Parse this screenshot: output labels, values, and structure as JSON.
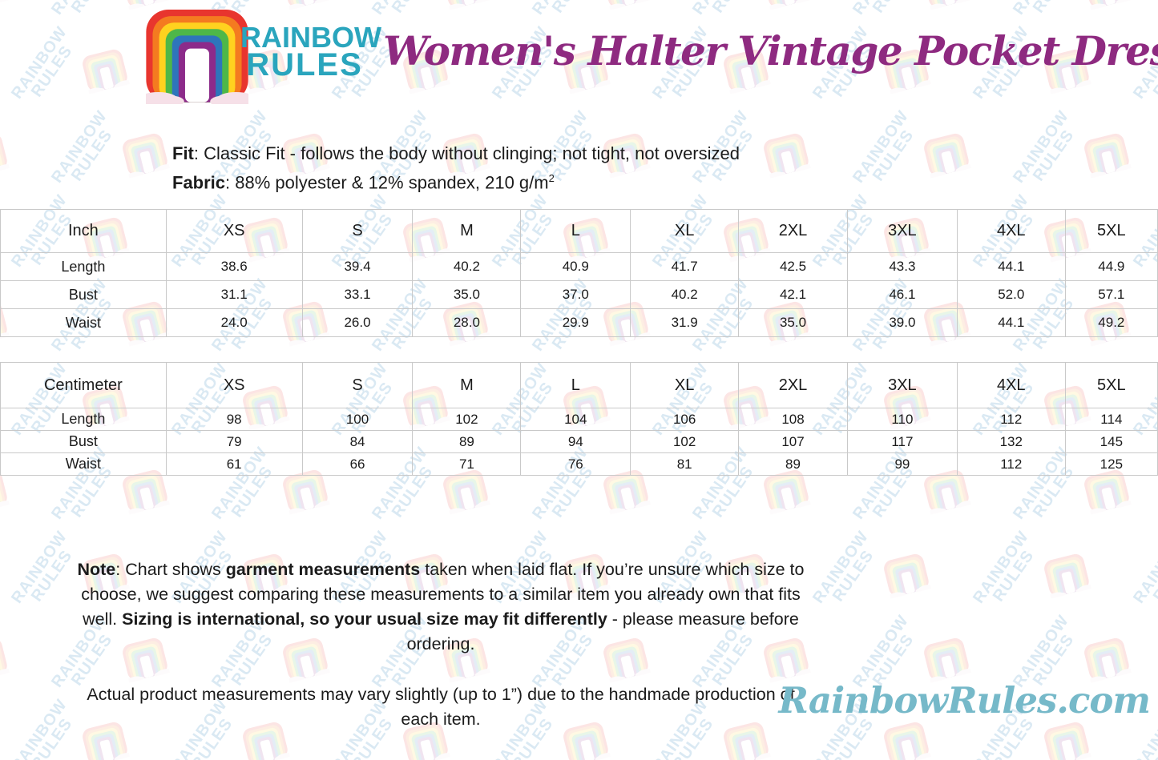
{
  "brand": {
    "line1": "RAINBOW",
    "line2": "RULES"
  },
  "header": {
    "title": "Women's Halter Vintage Pocket Dress"
  },
  "product_info": {
    "fit": [
      {
        "text": "Fit",
        "bold": true
      },
      {
        "text": ": Classic Fit - follows the body without clinging; not tight, not oversized",
        "bold": false
      }
    ],
    "fabric": [
      {
        "text": "Fabric",
        "bold": true
      },
      {
        "text": ": 88% polyester & 12% spandex, 210 g/m",
        "bold": false
      },
      {
        "text": "2",
        "bold": false,
        "sup": true
      }
    ]
  },
  "size_tables": [
    {
      "unit_label": "Inch",
      "columns": [
        "XS",
        "S",
        "M",
        "L",
        "XL",
        "2XL",
        "3XL",
        "4XL",
        "5XL"
      ],
      "rows": [
        {
          "label": "Length",
          "values": [
            "38.6",
            "39.4",
            "40.2",
            "40.9",
            "41.7",
            "42.5",
            "43.3",
            "44.1",
            "44.9"
          ]
        },
        {
          "label": "Bust",
          "values": [
            "31.1",
            "33.1",
            "35.0",
            "37.0",
            "40.2",
            "42.1",
            "46.1",
            "52.0",
            "57.1"
          ]
        },
        {
          "label": "Waist",
          "values": [
            "24.0",
            "26.0",
            "28.0",
            "29.9",
            "31.9",
            "35.0",
            "39.0",
            "44.1",
            "49.2"
          ]
        }
      ]
    },
    {
      "unit_label": "Centimeter",
      "columns": [
        "XS",
        "S",
        "M",
        "L",
        "XL",
        "2XL",
        "3XL",
        "4XL",
        "5XL"
      ],
      "rows": [
        {
          "label": "Length",
          "values": [
            "98",
            "100",
            "102",
            "104",
            "106",
            "108",
            "110",
            "112",
            "114"
          ]
        },
        {
          "label": "Bust",
          "values": [
            "79",
            "84",
            "89",
            "94",
            "102",
            "107",
            "117",
            "132",
            "145"
          ]
        },
        {
          "label": "Waist",
          "values": [
            "61",
            "66",
            "71",
            "76",
            "81",
            "89",
            "99",
            "112",
            "125"
          ]
        }
      ]
    }
  ],
  "notes": {
    "note": [
      {
        "text": "Note",
        "bold": true
      },
      {
        "text": ": Chart shows ",
        "bold": false
      },
      {
        "text": "garment measurements",
        "bold": true
      },
      {
        "text": " taken when laid flat. If you’re unsure which size to choose, we suggest comparing these measurements to a similar item you already own that fits well. ",
        "bold": false
      },
      {
        "text": "Sizing is international, so your usual size may fit differently",
        "bold": true
      },
      {
        "text": " - please measure before ordering.",
        "bold": false
      }
    ],
    "disclaimer": "Actual product measurements may vary slightly (up to 1”) due to the handmade production of each item."
  },
  "footer": {
    "website": "RainbowRules.com"
  },
  "watermark": {
    "line1": "RAINBOW",
    "line2": "RULES"
  },
  "colors": {
    "brand_teal": "#2aa5bd",
    "title_purple": "#8e2a80",
    "website_teal": "#76b9c9",
    "table_border": "#c9c9c9",
    "text": "#1b1b1b",
    "rainbow": [
      "#e8352e",
      "#f47b20",
      "#ffd21f",
      "#4eb748",
      "#2e75bb",
      "#8c2b8a"
    ],
    "cloud_pink": "#f6e0e8"
  }
}
